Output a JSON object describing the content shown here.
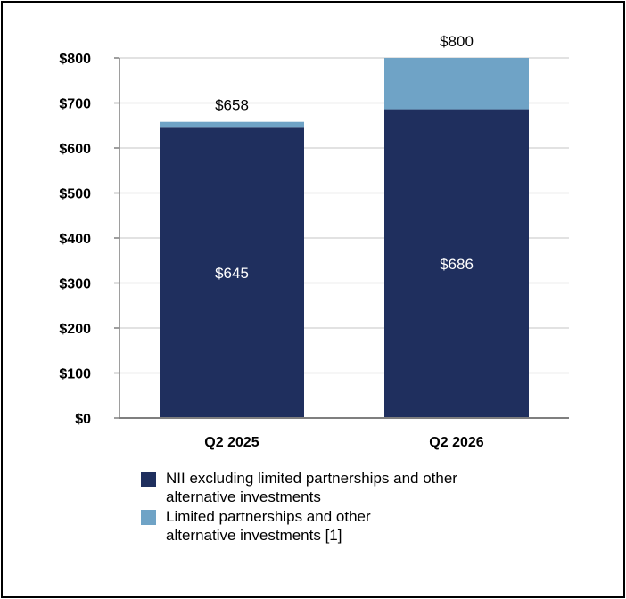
{
  "chart_data": {
    "type": "bar",
    "stacked": true,
    "categories": [
      "Q2 2025",
      "Q2 2026"
    ],
    "series": [
      {
        "name": "NII excluding limited partnerships and other alternative investments",
        "values": [
          645,
          686
        ],
        "color": "#1f2f5e",
        "value_labels": [
          "$645",
          "$686"
        ]
      },
      {
        "name": "Limited partnerships and other alternative investments [1]",
        "values": [
          13,
          114
        ],
        "color": "#6fa3c6"
      }
    ],
    "totals": [
      658,
      800
    ],
    "total_labels": [
      "$658",
      "$800"
    ],
    "ylim": [
      0,
      800
    ],
    "yticks": [
      0,
      100,
      200,
      300,
      400,
      500,
      600,
      700,
      800
    ],
    "ytick_labels": [
      "$0",
      "$100",
      "$200",
      "$300",
      "$400",
      "$500",
      "$600",
      "$700",
      "$800"
    ],
    "grid": true,
    "legend_position": "bottom",
    "legend": [
      {
        "line1": "NII excluding limited partnerships and other",
        "line2": "alternative investments",
        "color": "#1f2f5e"
      },
      {
        "line1": "Limited partnerships and other",
        "line2": "alternative investments [1]",
        "color": "#6fa3c6"
      }
    ]
  }
}
